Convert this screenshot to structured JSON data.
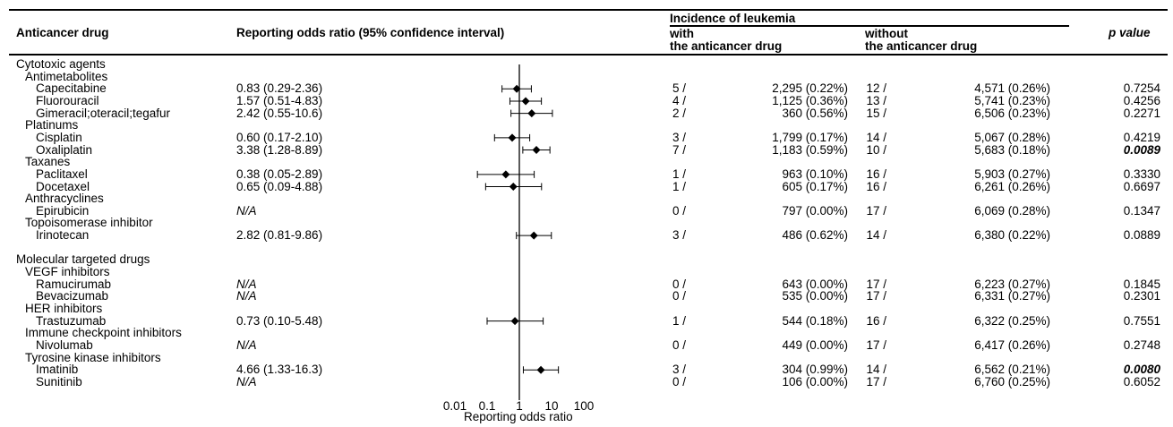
{
  "headers": {
    "drug": "Anticancer drug",
    "ror": "Reporting odds ratio (95% confidence interval)",
    "incidence": "Incidence of leukemia",
    "with_l1": "with",
    "with_l2": "the anticancer drug",
    "without_l1": "without",
    "without_l2": "the anticancer drug",
    "p": "p value"
  },
  "axis": {
    "ticks": [
      "0.01",
      "0.1",
      "1",
      "10",
      "100"
    ],
    "label": "Reporting odds ratio"
  },
  "chart_data": {
    "type": "forest",
    "x_scale": "log",
    "xlim": [
      0.01,
      100
    ],
    "reference_line": 1,
    "xlabel": "Reporting odds ratio",
    "rows": [
      {
        "kind": "group",
        "label": "Cytotoxic agents"
      },
      {
        "kind": "subgroup",
        "label": "Antimetabolites"
      },
      {
        "kind": "drug",
        "label": "Capecitabine",
        "ror_text": "0.83 (0.29-2.36)",
        "est": 0.83,
        "lo": 0.29,
        "hi": 2.36,
        "with_n": "5 /",
        "with_total": "2,295 (0.22%)",
        "wo_n": "12 /",
        "wo_total": "4,571 (0.26%)",
        "p": "0.7254",
        "sig": false
      },
      {
        "kind": "drug",
        "label": "Fluorouracil",
        "ror_text": "1.57 (0.51-4.83)",
        "est": 1.57,
        "lo": 0.51,
        "hi": 4.83,
        "with_n": "4 /",
        "with_total": "1,125 (0.36%)",
        "wo_n": "13 /",
        "wo_total": "5,741 (0.23%)",
        "p": "0.4256",
        "sig": false
      },
      {
        "kind": "drug",
        "label": "Gimeracil;oteracil;tegafur",
        "ror_text": "2.42 (0.55-10.6)",
        "est": 2.42,
        "lo": 0.55,
        "hi": 10.6,
        "with_n": "2 /",
        "with_total": "360 (0.56%)",
        "wo_n": "15 /",
        "wo_total": "6,506 (0.23%)",
        "p": "0.2271",
        "sig": false
      },
      {
        "kind": "subgroup",
        "label": "Platinums"
      },
      {
        "kind": "drug",
        "label": "Cisplatin",
        "ror_text": "0.60 (0.17-2.10)",
        "est": 0.6,
        "lo": 0.17,
        "hi": 2.1,
        "with_n": "3 /",
        "with_total": "1,799 (0.17%)",
        "wo_n": "14 /",
        "wo_total": "5,067 (0.28%)",
        "p": "0.4219",
        "sig": false
      },
      {
        "kind": "drug",
        "label": "Oxaliplatin",
        "ror_text": "3.38 (1.28-8.89)",
        "est": 3.38,
        "lo": 1.28,
        "hi": 8.89,
        "with_n": "7 /",
        "with_total": "1,183 (0.59%)",
        "wo_n": "10 /",
        "wo_total": "5,683 (0.18%)",
        "p": "0.0089",
        "sig": true
      },
      {
        "kind": "subgroup",
        "label": "Taxanes"
      },
      {
        "kind": "drug",
        "label": "Paclitaxel",
        "ror_text": "0.38 (0.05-2.89)",
        "est": 0.38,
        "lo": 0.05,
        "hi": 2.89,
        "with_n": "1 /",
        "with_total": "963 (0.10%)",
        "wo_n": "16 /",
        "wo_total": "5,903 (0.27%)",
        "p": "0.3330",
        "sig": false
      },
      {
        "kind": "drug",
        "label": "Docetaxel",
        "ror_text": "0.65 (0.09-4.88)",
        "est": 0.65,
        "lo": 0.09,
        "hi": 4.88,
        "with_n": "1 /",
        "with_total": "605 (0.17%)",
        "wo_n": "16 /",
        "wo_total": "6,261 (0.26%)",
        "p": "0.6697",
        "sig": false
      },
      {
        "kind": "subgroup",
        "label": "Anthracyclines"
      },
      {
        "kind": "drug",
        "label": "Epirubicin",
        "ror_text": "N/A",
        "est": null,
        "lo": null,
        "hi": null,
        "with_n": "0 /",
        "with_total": "797 (0.00%)",
        "wo_n": "17 /",
        "wo_total": "6,069 (0.28%)",
        "p": "0.1347",
        "sig": false
      },
      {
        "kind": "subgroup",
        "label": "Topoisomerase inhibitor"
      },
      {
        "kind": "drug",
        "label": "Irinotecan",
        "ror_text": "2.82 (0.81-9.86)",
        "est": 2.82,
        "lo": 0.81,
        "hi": 9.86,
        "with_n": "3 /",
        "with_total": "486 (0.62%)",
        "wo_n": "14 /",
        "wo_total": "6,380 (0.22%)",
        "p": "0.0889",
        "sig": false
      },
      {
        "kind": "spacer"
      },
      {
        "kind": "group",
        "label": "Molecular targeted drugs"
      },
      {
        "kind": "subgroup",
        "label": "VEGF inhibitors"
      },
      {
        "kind": "drug",
        "label": "Ramucirumab",
        "ror_text": "N/A",
        "est": null,
        "lo": null,
        "hi": null,
        "with_n": "0 /",
        "with_total": "643 (0.00%)",
        "wo_n": "17 /",
        "wo_total": "6,223 (0.27%)",
        "p": "0.1845",
        "sig": false
      },
      {
        "kind": "drug",
        "label": "Bevacizumab",
        "ror_text": "N/A",
        "est": null,
        "lo": null,
        "hi": null,
        "with_n": "0 /",
        "with_total": "535 (0.00%)",
        "wo_n": "17 /",
        "wo_total": "6,331 (0.27%)",
        "p": "0.2301",
        "sig": false
      },
      {
        "kind": "subgroup",
        "label": "HER inhibitors"
      },
      {
        "kind": "drug",
        "label": "Trastuzumab",
        "ror_text": "0.73 (0.10-5.48)",
        "est": 0.73,
        "lo": 0.1,
        "hi": 5.48,
        "with_n": "1 /",
        "with_total": "544 (0.18%)",
        "wo_n": "16 /",
        "wo_total": "6,322 (0.25%)",
        "p": "0.7551",
        "sig": false
      },
      {
        "kind": "subgroup",
        "label": "Immune checkpoint inhibitors"
      },
      {
        "kind": "drug",
        "label": "Nivolumab",
        "ror_text": "N/A",
        "est": null,
        "lo": null,
        "hi": null,
        "with_n": "0 /",
        "with_total": "449 (0.00%)",
        "wo_n": "17 /",
        "wo_total": "6,417 (0.26%)",
        "p": "0.2748",
        "sig": false
      },
      {
        "kind": "subgroup",
        "label": "Tyrosine kinase inhibitors"
      },
      {
        "kind": "drug",
        "label": "Imatinib",
        "ror_text": "4.66 (1.33-16.3)",
        "est": 4.66,
        "lo": 1.33,
        "hi": 16.3,
        "with_n": "3 /",
        "with_total": "304 (0.99%)",
        "wo_n": "14 /",
        "wo_total": "6,562 (0.21%)",
        "p": "0.0080",
        "sig": true
      },
      {
        "kind": "drug",
        "label": "Sunitinib",
        "ror_text": "N/A",
        "est": null,
        "lo": null,
        "hi": null,
        "with_n": "0 /",
        "with_total": "106 (0.00%)",
        "wo_n": "17 /",
        "wo_total": "6,760 (0.25%)",
        "p": "0.6052",
        "sig": false
      }
    ]
  }
}
